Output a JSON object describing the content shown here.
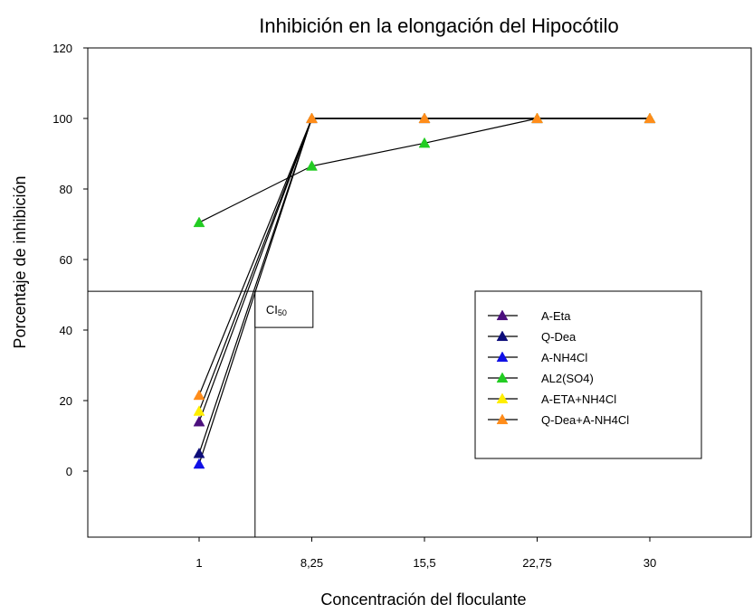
{
  "chart_data": {
    "type": "line",
    "title": "Inhibición en la elongación del Hipocótilo",
    "xlabel": "Concentración del floculante",
    "ylabel": "Porcentaje de inhibición",
    "categories": [
      "1",
      "8,25",
      "15,5",
      "22,75",
      "30"
    ],
    "x": [
      1,
      8.25,
      15.5,
      22.75,
      30
    ],
    "ylim": [
      -20,
      120
    ],
    "yticks": [
      0,
      20,
      40,
      60,
      80,
      100,
      120
    ],
    "grid": false,
    "legend_placement": "right",
    "series": [
      {
        "name": "A-Eta",
        "color": "#4b0f7d",
        "x": [
          1,
          8.25,
          15.5,
          22.75,
          30
        ],
        "y": [
          14,
          100,
          100,
          100,
          100
        ]
      },
      {
        "name": "Q-Dea",
        "color": "#0d0d7a",
        "x": [
          1,
          8.25,
          15.5,
          22.75,
          30
        ],
        "y": [
          5,
          100,
          100,
          100,
          100
        ]
      },
      {
        "name": "A-NH4Cl",
        "color": "#1010e6",
        "x": [
          1,
          8.25,
          15.5,
          22.75,
          30
        ],
        "y": [
          2,
          100,
          100,
          100,
          100
        ]
      },
      {
        "name": "AL2(SO4)",
        "color": "#22cc22",
        "x": [
          1,
          8.25,
          15.5,
          22.75,
          30
        ],
        "y": [
          70.5,
          86.5,
          93,
          100,
          100
        ]
      },
      {
        "name": "A-ETA+NH4Cl",
        "color": "#ffee00",
        "x": [
          1,
          8.25,
          15.5,
          22.75,
          30
        ],
        "y": [
          17,
          100,
          100,
          100,
          100
        ]
      },
      {
        "name": "Q-Dea+A-NH4Cl",
        "color": "#ff8c1a",
        "x": [
          1,
          8.25,
          15.5,
          22.75,
          30
        ],
        "y": [
          21.5,
          100,
          100,
          100,
          100
        ]
      }
    ],
    "annotations": [
      {
        "label_main": "CI",
        "label_sub": "50",
        "x": 4.6,
        "y": 51
      }
    ]
  }
}
